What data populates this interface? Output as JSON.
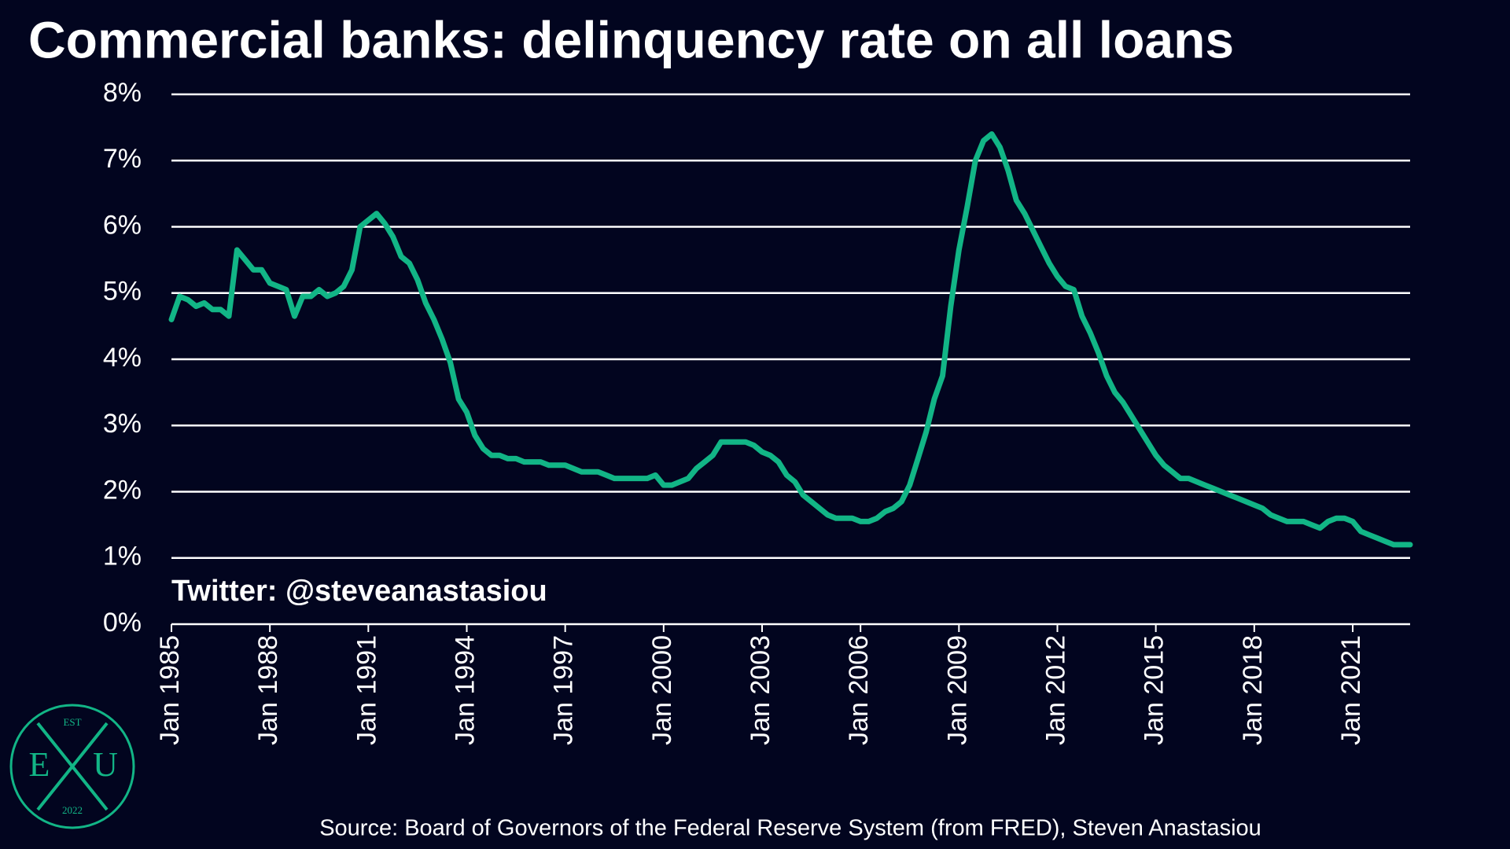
{
  "chart_data": {
    "type": "line",
    "title": "Commercial banks: delinquency rate on all loans",
    "annotation": "Twitter: @steveanastasiou",
    "source": "Source: Board of Governors of the Federal Reserve System (from FRED), Steven Anastasiou",
    "logo": {
      "top": "EST",
      "left": "E",
      "right": "U",
      "bottom": "2022"
    },
    "color": "#12b586",
    "grid": true,
    "ylim": [
      0,
      8
    ],
    "yticks": [
      {
        "value": 0,
        "label": "0%"
      },
      {
        "value": 1,
        "label": "1%"
      },
      {
        "value": 2,
        "label": "2%"
      },
      {
        "value": 3,
        "label": "3%"
      },
      {
        "value": 4,
        "label": "4%"
      },
      {
        "value": 5,
        "label": "5%"
      },
      {
        "value": 6,
        "label": "6%"
      },
      {
        "value": 7,
        "label": "7%"
      },
      {
        "value": 8,
        "label": "8%"
      }
    ],
    "xlim": [
      "1985-01",
      "2022-10"
    ],
    "xticks": [
      {
        "value": "1985-01",
        "label": "Jan 1985"
      },
      {
        "value": "1988-01",
        "label": "Jan 1988"
      },
      {
        "value": "1991-01",
        "label": "Jan 1991"
      },
      {
        "value": "1994-01",
        "label": "Jan 1994"
      },
      {
        "value": "1997-01",
        "label": "Jan 1997"
      },
      {
        "value": "2000-01",
        "label": "Jan 2000"
      },
      {
        "value": "2003-01",
        "label": "Jan 2003"
      },
      {
        "value": "2006-01",
        "label": "Jan 2006"
      },
      {
        "value": "2009-01",
        "label": "Jan 2009"
      },
      {
        "value": "2012-01",
        "label": "Jan 2012"
      },
      {
        "value": "2015-01",
        "label": "Jan 2015"
      },
      {
        "value": "2018-01",
        "label": "Jan 2018"
      },
      {
        "value": "2021-01",
        "label": "Jan 2021"
      }
    ],
    "x": [
      "1985-01",
      "1985-04",
      "1985-07",
      "1985-10",
      "1986-01",
      "1986-04",
      "1986-07",
      "1986-10",
      "1987-01",
      "1987-04",
      "1987-07",
      "1987-10",
      "1988-01",
      "1988-04",
      "1988-07",
      "1988-10",
      "1989-01",
      "1989-04",
      "1989-07",
      "1989-10",
      "1990-01",
      "1990-04",
      "1990-07",
      "1990-10",
      "1991-01",
      "1991-04",
      "1991-07",
      "1991-10",
      "1992-01",
      "1992-04",
      "1992-07",
      "1992-10",
      "1993-01",
      "1993-04",
      "1993-07",
      "1993-10",
      "1994-01",
      "1994-04",
      "1994-07",
      "1994-10",
      "1995-01",
      "1995-04",
      "1995-07",
      "1995-10",
      "1996-01",
      "1996-04",
      "1996-07",
      "1996-10",
      "1997-01",
      "1997-04",
      "1997-07",
      "1997-10",
      "1998-01",
      "1998-04",
      "1998-07",
      "1998-10",
      "1999-01",
      "1999-04",
      "1999-07",
      "1999-10",
      "2000-01",
      "2000-04",
      "2000-07",
      "2000-10",
      "2001-01",
      "2001-04",
      "2001-07",
      "2001-10",
      "2002-01",
      "2002-04",
      "2002-07",
      "2002-10",
      "2003-01",
      "2003-04",
      "2003-07",
      "2003-10",
      "2004-01",
      "2004-04",
      "2004-07",
      "2004-10",
      "2005-01",
      "2005-04",
      "2005-07",
      "2005-10",
      "2006-01",
      "2006-04",
      "2006-07",
      "2006-10",
      "2007-01",
      "2007-04",
      "2007-07",
      "2007-10",
      "2008-01",
      "2008-04",
      "2008-07",
      "2008-10",
      "2009-01",
      "2009-04",
      "2009-07",
      "2009-10",
      "2010-01",
      "2010-04",
      "2010-07",
      "2010-10",
      "2011-01",
      "2011-04",
      "2011-07",
      "2011-10",
      "2012-01",
      "2012-04",
      "2012-07",
      "2012-10",
      "2013-01",
      "2013-04",
      "2013-07",
      "2013-10",
      "2014-01",
      "2014-04",
      "2014-07",
      "2014-10",
      "2015-01",
      "2015-04",
      "2015-07",
      "2015-10",
      "2016-01",
      "2016-04",
      "2016-07",
      "2016-10",
      "2017-01",
      "2017-04",
      "2017-07",
      "2017-10",
      "2018-01",
      "2018-04",
      "2018-07",
      "2018-10",
      "2019-01",
      "2019-04",
      "2019-07",
      "2019-10",
      "2020-01",
      "2020-04",
      "2020-07",
      "2020-10",
      "2021-01",
      "2021-04",
      "2021-07",
      "2021-10",
      "2022-01",
      "2022-04",
      "2022-07",
      "2022-10"
    ],
    "values": [
      4.6,
      4.95,
      4.9,
      4.8,
      4.85,
      4.75,
      4.75,
      4.65,
      5.65,
      5.5,
      5.35,
      5.35,
      5.15,
      5.1,
      5.05,
      4.65,
      4.95,
      4.95,
      5.05,
      4.95,
      5.0,
      5.1,
      5.35,
      6.0,
      6.1,
      6.2,
      6.05,
      5.85,
      5.55,
      5.45,
      5.2,
      4.85,
      4.6,
      4.3,
      3.95,
      3.4,
      3.2,
      2.85,
      2.65,
      2.55,
      2.55,
      2.5,
      2.5,
      2.45,
      2.45,
      2.45,
      2.4,
      2.4,
      2.4,
      2.35,
      2.3,
      2.3,
      2.3,
      2.25,
      2.2,
      2.2,
      2.2,
      2.2,
      2.2,
      2.25,
      2.1,
      2.1,
      2.15,
      2.2,
      2.35,
      2.45,
      2.55,
      2.75,
      2.75,
      2.75,
      2.75,
      2.7,
      2.6,
      2.55,
      2.45,
      2.25,
      2.15,
      1.95,
      1.85,
      1.75,
      1.65,
      1.6,
      1.6,
      1.6,
      1.55,
      1.55,
      1.6,
      1.7,
      1.75,
      1.85,
      2.1,
      2.5,
      2.9,
      3.4,
      3.75,
      4.8,
      5.65,
      6.3,
      7.0,
      7.3,
      7.4,
      7.2,
      6.85,
      6.4,
      6.2,
      5.95,
      5.7,
      5.45,
      5.25,
      5.1,
      5.05,
      4.65,
      4.4,
      4.1,
      3.75,
      3.5,
      3.35,
      3.15,
      2.95,
      2.75,
      2.55,
      2.4,
      2.3,
      2.2,
      2.2,
      2.15,
      2.1,
      2.05,
      2.0,
      1.95,
      1.9,
      1.85,
      1.8,
      1.75,
      1.65,
      1.6,
      1.55,
      1.55,
      1.55,
      1.5,
      1.45,
      1.55,
      1.6,
      1.6,
      1.55,
      1.4,
      1.35,
      1.3,
      1.25,
      1.2,
      1.2,
      1.2
    ]
  }
}
